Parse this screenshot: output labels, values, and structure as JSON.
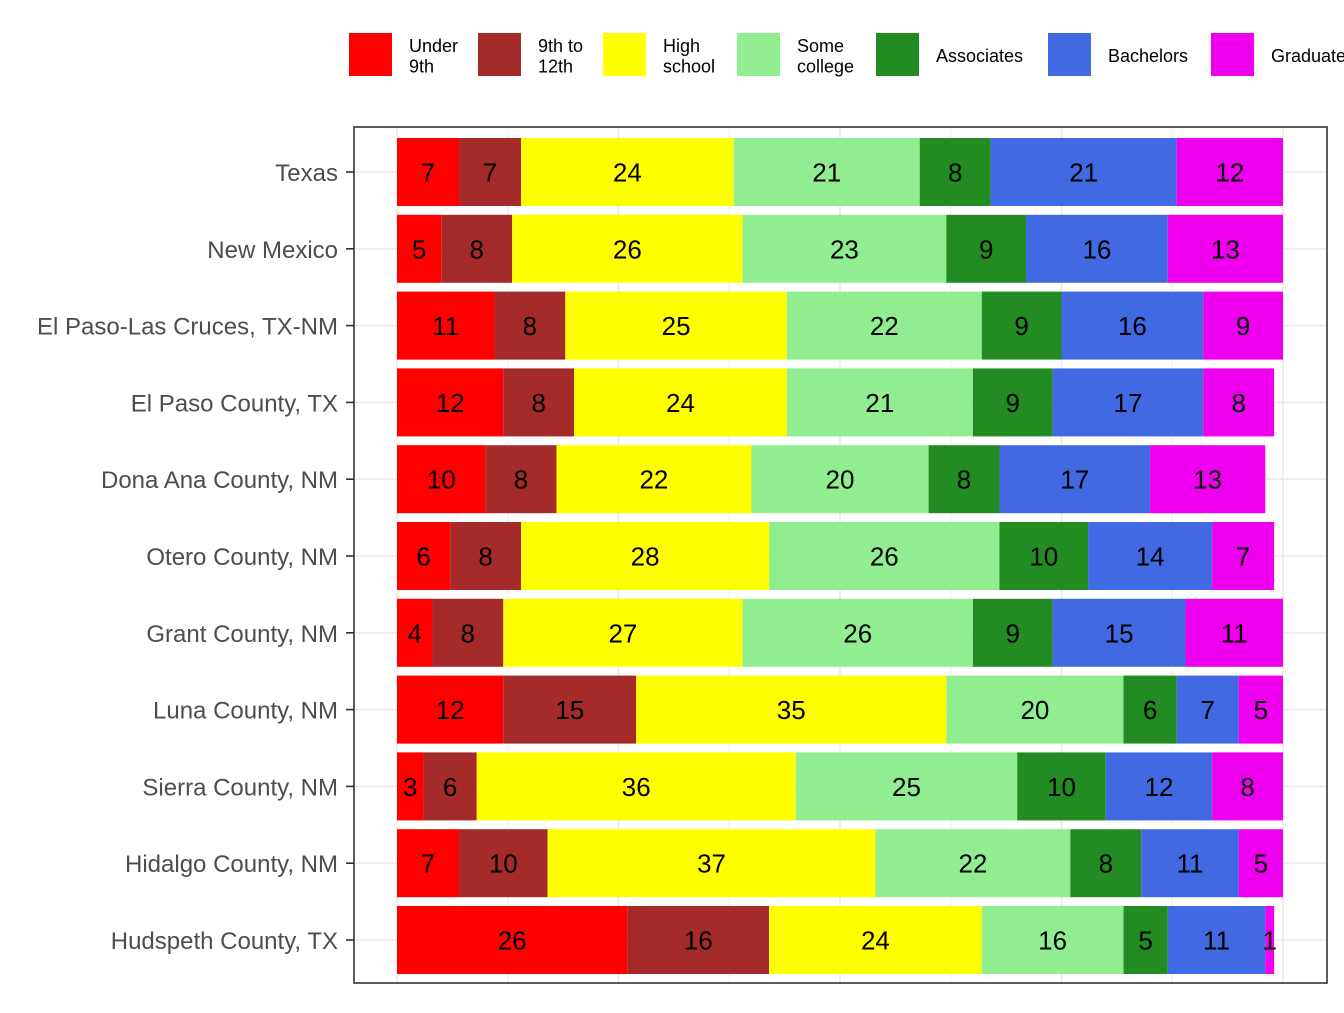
{
  "chart_data": {
    "type": "bar",
    "orientation": "horizontal",
    "stacked": true,
    "title": "",
    "xlabel": "",
    "ylabel": "",
    "xlim": [
      0,
      100
    ],
    "grid": true,
    "legend_position": "top",
    "categories": [
      "Texas",
      "New Mexico",
      "El Paso-Las Cruces, TX-NM",
      "El Paso County, TX",
      "Dona Ana County, NM",
      "Otero County, NM",
      "Grant County, NM",
      "Luna County, NM",
      "Sierra County, NM",
      "Hidalgo County, NM",
      "Hudspeth County, TX"
    ],
    "series": [
      {
        "name": "Under 9th",
        "legend_lines": [
          "Under",
          "9th"
        ],
        "color": "#ff0000",
        "values": [
          7,
          5,
          11,
          12,
          10,
          6,
          4,
          12,
          3,
          7,
          26
        ]
      },
      {
        "name": "9th to 12th",
        "legend_lines": [
          "9th to",
          "12th"
        ],
        "color": "#a52a2a",
        "values": [
          7,
          8,
          8,
          8,
          8,
          8,
          8,
          15,
          6,
          10,
          16
        ]
      },
      {
        "name": "High school",
        "legend_lines": [
          "High",
          "school"
        ],
        "color": "#ffff00",
        "values": [
          24,
          26,
          25,
          24,
          22,
          28,
          27,
          35,
          36,
          37,
          24
        ]
      },
      {
        "name": "Some college",
        "legend_lines": [
          "Some",
          "college"
        ],
        "color": "#90ee90",
        "values": [
          21,
          23,
          22,
          21,
          20,
          26,
          26,
          20,
          25,
          22,
          16
        ]
      },
      {
        "name": "Associates",
        "legend_lines": [
          "Associates"
        ],
        "color": "#228b22",
        "values": [
          8,
          9,
          9,
          9,
          8,
          10,
          9,
          6,
          10,
          8,
          5
        ]
      },
      {
        "name": "Bachelors",
        "legend_lines": [
          "Bachelors"
        ],
        "color": "#4169e1",
        "values": [
          21,
          16,
          16,
          17,
          17,
          14,
          15,
          7,
          12,
          11,
          11
        ]
      },
      {
        "name": "Graduate",
        "legend_lines": [
          "Graduate"
        ],
        "color": "#ee00ee",
        "values": [
          12,
          13,
          9,
          8,
          13,
          7,
          11,
          5,
          8,
          5,
          1
        ]
      }
    ],
    "colors": {
      "panel_border": "#333333",
      "grid": "#ebebeb",
      "tick_label": "#4d4d4d",
      "axis_tick": "#333333",
      "bar_label": "#000000"
    }
  }
}
